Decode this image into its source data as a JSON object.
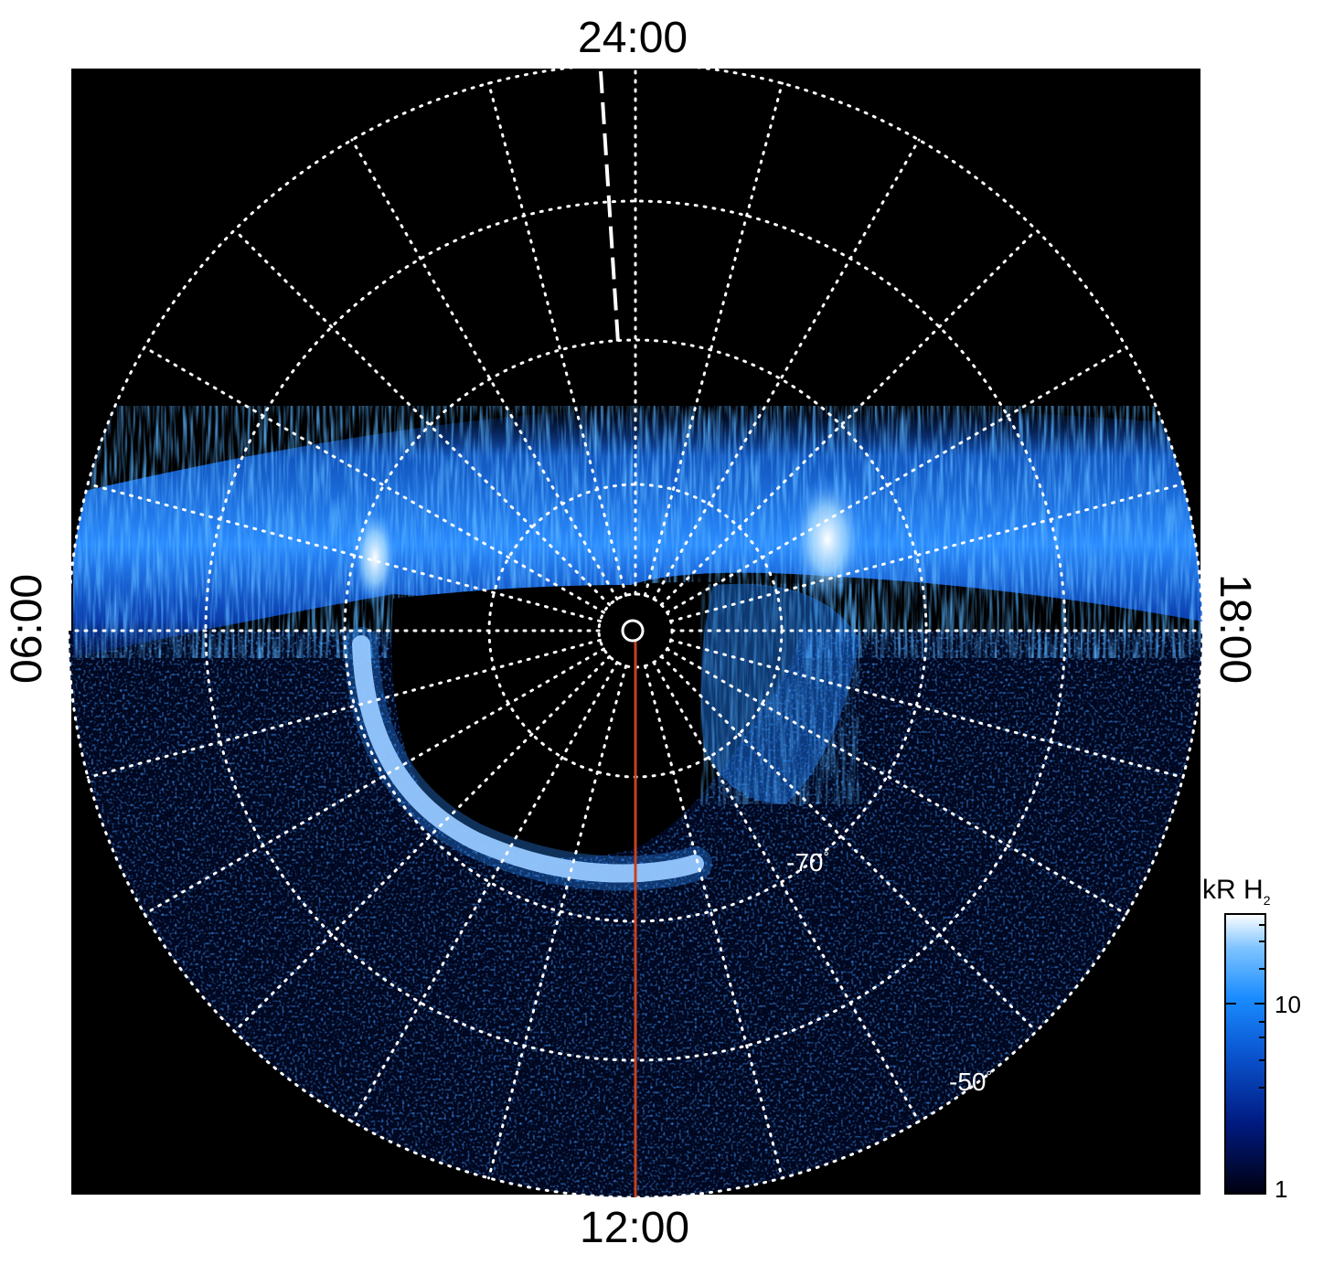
{
  "local_time_labels": {
    "top": "24:00",
    "bottom": "12:00",
    "left": "06:00",
    "right": "18:00"
  },
  "latitude_labels": {
    "inner": "-70",
    "outer": "-50",
    "degree_symbol": "°"
  },
  "colorbar": {
    "unit": "kR",
    "species": "H",
    "species_subscript": "2",
    "tick_labels": [
      "10",
      "1"
    ],
    "colors": [
      "#000014",
      "#001a80",
      "#0a55d0",
      "#1a8cff",
      "#7fc4ff",
      "#ffffff"
    ]
  },
  "colors": {
    "background": "#000000",
    "grid": "#ffffff",
    "noon_meridian": "#c8401e"
  }
}
